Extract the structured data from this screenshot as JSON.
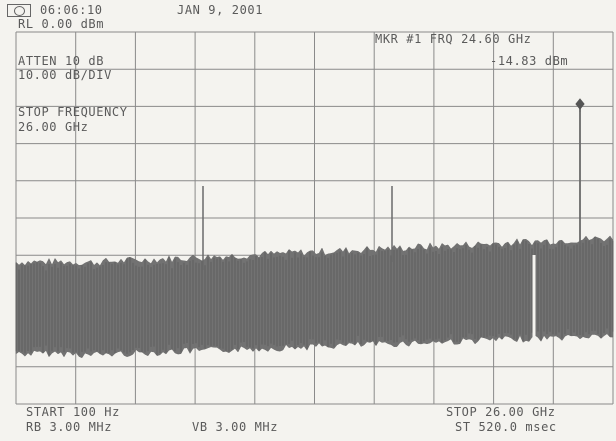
{
  "header": {
    "logo_icon": "hp-logo-icon",
    "time": "06:06:10",
    "date": "JAN  9, 2001"
  },
  "settings": {
    "ref_level": "RL 0.00 dBm",
    "attenuation": "ATTEN 10 dB",
    "scale": "10.00 dB/DIV"
  },
  "marker": {
    "frequency_readout": "MKR #1 FRQ 24.60 GHz",
    "amplitude_readout": "-14.83 dBm"
  },
  "active_function": {
    "label": "STOP FREQUENCY",
    "value": "26.00 GHz"
  },
  "footer": {
    "start": "START  100 Hz",
    "stop": "STOP 26.00 GHz",
    "rbw": "RB 3.00 MHz",
    "vbw": "VB 3.00 MHz",
    "sweep": "ST 520.0 msec"
  },
  "colors": {
    "grid": "#8a8a8a",
    "trace": "#6e6e6e",
    "text": "#5a5a5a",
    "background": "#f4f3ef"
  }
}
